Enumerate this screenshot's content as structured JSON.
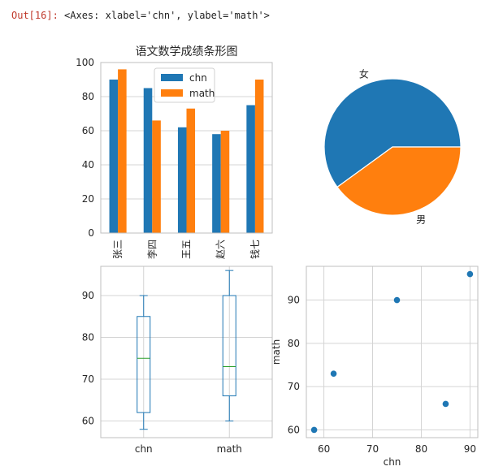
{
  "output": {
    "prompt": "Out[16]: ",
    "repr": "<Axes: xlabel='chn', ylabel='math'>"
  },
  "colors": {
    "blue": "#1f77b4",
    "orange": "#ff7f0e",
    "green": "#2ca02c",
    "grid": "#d4d4d4",
    "spine": "#bfbfbf"
  },
  "chart_data": [
    {
      "type": "bar",
      "title": "语文数学成绩条形图",
      "categories": [
        "张三",
        "李四",
        "王五",
        "赵六",
        "钱七"
      ],
      "series": [
        {
          "name": "chn",
          "values": [
            90,
            85,
            62,
            58,
            75
          ]
        },
        {
          "name": "math",
          "values": [
            96,
            66,
            73,
            60,
            90
          ]
        }
      ],
      "ylim": [
        0,
        100
      ],
      "yticks": [
        0,
        20,
        40,
        60,
        80,
        100
      ],
      "grid": true,
      "legend": "upper-center"
    },
    {
      "type": "pie",
      "labels": [
        "女",
        "男"
      ],
      "values": [
        3,
        2
      ]
    },
    {
      "type": "box",
      "categories": [
        "chn",
        "math"
      ],
      "series": [
        {
          "name": "chn",
          "min": 58,
          "q1": 62,
          "median": 75,
          "q3": 85,
          "max": 90
        },
        {
          "name": "math",
          "min": 60,
          "q1": 66,
          "median": 73,
          "q3": 90,
          "max": 96
        }
      ],
      "ylim": [
        56,
        97
      ],
      "yticks": [
        60,
        70,
        80,
        90
      ],
      "grid": true
    },
    {
      "type": "scatter",
      "xlabel": "chn",
      "ylabel": "math",
      "x": [
        90,
        85,
        62,
        58,
        75
      ],
      "y": [
        96,
        66,
        73,
        60,
        90
      ],
      "xlim": [
        56.4,
        91.6
      ],
      "ylim": [
        58.2,
        97.8
      ],
      "xticks": [
        60,
        70,
        80,
        90
      ],
      "yticks": [
        60,
        70,
        80,
        90
      ],
      "grid": true
    }
  ]
}
